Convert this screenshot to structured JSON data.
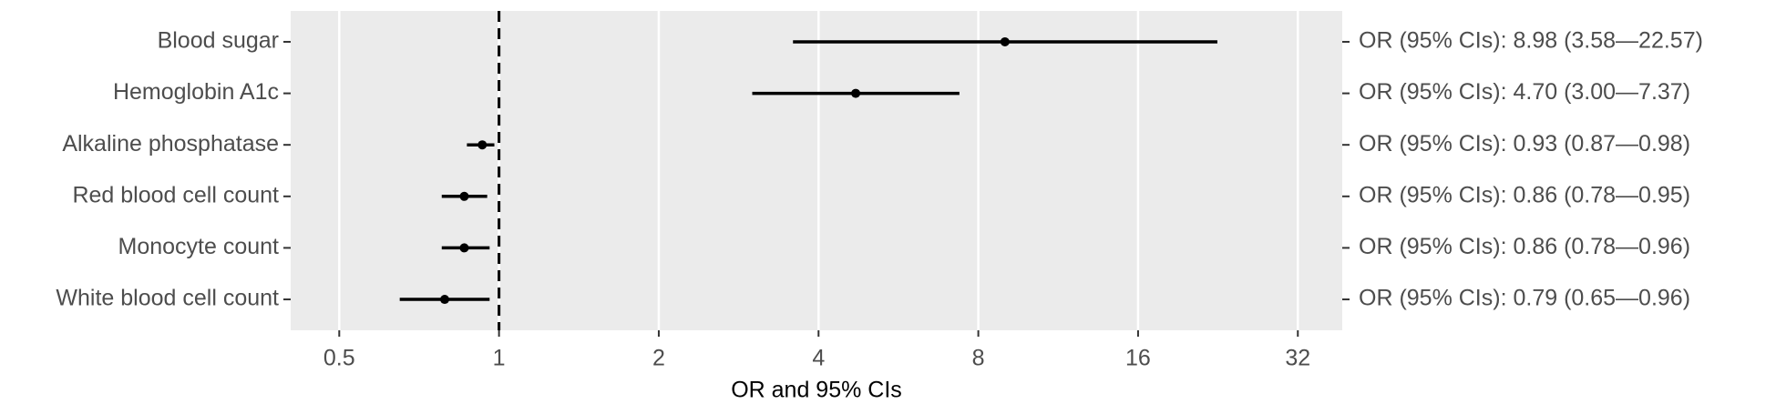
{
  "chart_data": {
    "type": "forest",
    "categories": [
      "Blood sugar",
      "Hemoglobin A1c",
      "Alkaline phosphatase",
      "Red blood cell count",
      "Monocyte count",
      "White blood cell count"
    ],
    "values": [
      8.98,
      4.7,
      0.93,
      0.86,
      0.86,
      0.79
    ],
    "lower": [
      3.58,
      3.0,
      0.87,
      0.78,
      0.78,
      0.65
    ],
    "upper": [
      22.57,
      7.37,
      0.98,
      0.95,
      0.96,
      0.96
    ],
    "value_labels": [
      "OR (95% CIs): 8.98 (3.58—22.57)",
      "OR (95% CIs): 4.70 (3.00—7.37)",
      "OR (95% CIs): 0.93 (0.87—0.98)",
      "OR (95% CIs): 0.86 (0.78—0.95)",
      "OR (95% CIs): 0.86 (0.78—0.96)",
      "OR (95% CIs): 0.79 (0.65—0.96)"
    ],
    "xlabel": "OR and 95% CIs",
    "xlim": [
      0.405,
      38.8
    ],
    "xticks": [
      0.5,
      1,
      2,
      4,
      8,
      16,
      32
    ],
    "log_scale": true,
    "grid": true,
    "reference_line": 1,
    "color": "#000000"
  }
}
